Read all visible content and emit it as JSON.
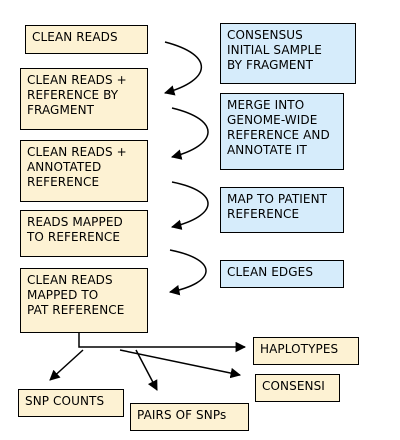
{
  "colors": {
    "data_box_fill": "#fdf2d3",
    "process_box_fill": "#d6ecfb",
    "line": "#000000"
  },
  "data_nodes": [
    {
      "id": "clean-reads",
      "label": "CLEAN READS"
    },
    {
      "id": "clean-reads-ref-by-fragment",
      "label": "CLEAN READS +\nREFERENCE BY\nFRAGMENT"
    },
    {
      "id": "clean-reads-annotated-ref",
      "label": "CLEAN READS +\nANNOTATED\nREFERENCE"
    },
    {
      "id": "reads-mapped-to-ref",
      "label": "READS MAPPED\nTO REFERENCE"
    },
    {
      "id": "clean-reads-mapped-pat-ref",
      "label": "CLEAN READS\nMAPPED TO\nPAT REFERENCE"
    },
    {
      "id": "haplotypes",
      "label": "HAPLOTYPES"
    },
    {
      "id": "consensi",
      "label": "CONSENSI"
    },
    {
      "id": "snp-counts",
      "label": "SNP COUNTS"
    },
    {
      "id": "pairs-of-snps",
      "label": "PAIRS OF SNPs"
    }
  ],
  "process_nodes": [
    {
      "id": "consensus-initial-sample",
      "label": "CONSENSUS\nINITIAL SAMPLE\nBY FRAGMENT"
    },
    {
      "id": "merge-genome-wide",
      "label": "MERGE INTO\nGENOME-WIDE\nREFERENCE AND\nANNOTATE IT"
    },
    {
      "id": "map-to-patient-ref",
      "label": "MAP TO PATIENT\nREFERENCE"
    },
    {
      "id": "clean-edges",
      "label": "CLEAN EDGES"
    }
  ]
}
